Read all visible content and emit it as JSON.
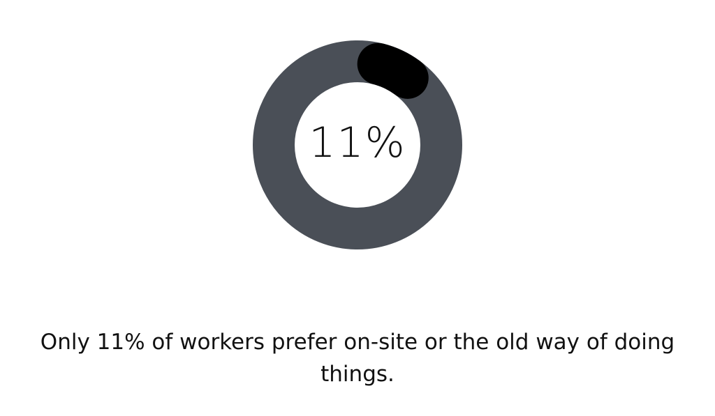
{
  "chart_data": {
    "type": "pie",
    "variant": "donut",
    "values": [
      11,
      89
    ],
    "unit": "%",
    "colors": [
      "#000000",
      "#4a4f57"
    ],
    "center_label": "11%",
    "caption": "Only 11% of workers prefer on-site or the old way of doing things."
  }
}
